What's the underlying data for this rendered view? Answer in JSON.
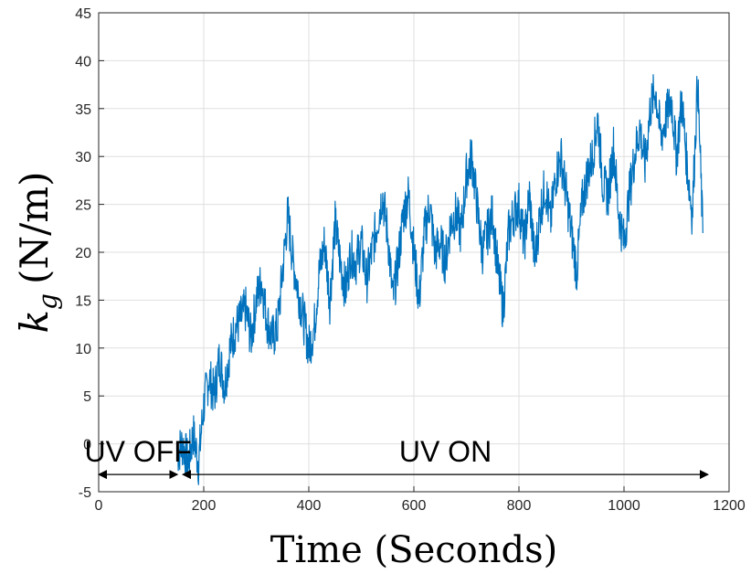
{
  "chart_data": {
    "type": "line",
    "xlabel": "Time (Seconds)",
    "ylabel": "kg (N/m)",
    "ylabel_parts": {
      "main": "k",
      "sub": "g",
      "unit": "(N/m)"
    },
    "xlim": [
      0,
      1200
    ],
    "ylim": [
      -5,
      45
    ],
    "x_ticks": [
      "0",
      "200",
      "400",
      "600",
      "800",
      "1000",
      "1200"
    ],
    "y_ticks": [
      "-5",
      "0",
      "5",
      "10",
      "15",
      "20",
      "25",
      "30",
      "35",
      "40",
      "45"
    ],
    "grid": true,
    "line_color": "#0072BD",
    "series": [
      {
        "x": [
          0,
          150,
          160,
          170,
          180,
          190,
          200,
          210,
          220,
          230,
          240,
          250,
          260,
          270,
          280,
          290,
          300,
          310,
          320,
          330,
          340,
          350,
          360,
          370,
          380,
          390,
          400,
          410,
          420,
          430,
          440,
          450,
          460,
          470,
          480,
          490,
          500,
          510,
          520,
          530,
          540,
          550,
          560,
          570,
          580,
          590,
          600,
          610,
          620,
          630,
          640,
          650,
          660,
          670,
          680,
          690,
          700,
          710,
          720,
          730,
          740,
          750,
          760,
          770,
          780,
          790,
          800,
          810,
          820,
          830,
          840,
          850,
          860,
          870,
          880,
          890,
          900,
          910,
          920,
          930,
          940,
          950,
          960,
          970,
          980,
          990,
          1000,
          1010,
          1020,
          1030,
          1040,
          1050,
          1060,
          1070,
          1080,
          1090,
          1100,
          1110,
          1120,
          1130,
          1140,
          1150
        ],
        "y": [
          null,
          -1,
          0,
          -2,
          1,
          -2,
          4,
          7,
          5,
          9,
          6,
          10,
          12,
          13,
          14,
          11,
          15,
          17,
          13,
          11,
          12,
          18,
          24,
          19,
          16,
          13,
          10,
          12,
          18,
          21,
          15,
          23,
          19,
          16,
          20,
          19,
          21,
          17,
          20,
          23,
          26,
          22,
          15,
          19,
          24,
          26,
          20,
          15,
          22,
          25,
          20,
          21,
          19,
          23,
          24,
          22,
          28,
          30,
          25,
          20,
          22,
          24,
          18,
          14,
          22,
          24,
          25,
          21,
          26,
          19,
          24,
          27,
          23,
          28,
          30,
          26,
          22,
          18,
          25,
          28,
          30,
          34,
          27,
          26,
          31,
          24,
          21,
          26,
          30,
          33,
          29,
          35,
          37,
          32,
          34,
          36,
          30,
          36,
          29,
          24,
          38,
          22
        ]
      }
    ],
    "annotations": [
      {
        "text": "UV OFF",
        "x_start": 0,
        "x_end": 150,
        "y": -3.2
      },
      {
        "text": "UV ON",
        "x_start": 160,
        "x_end": 1160,
        "y": -3.2
      }
    ]
  }
}
